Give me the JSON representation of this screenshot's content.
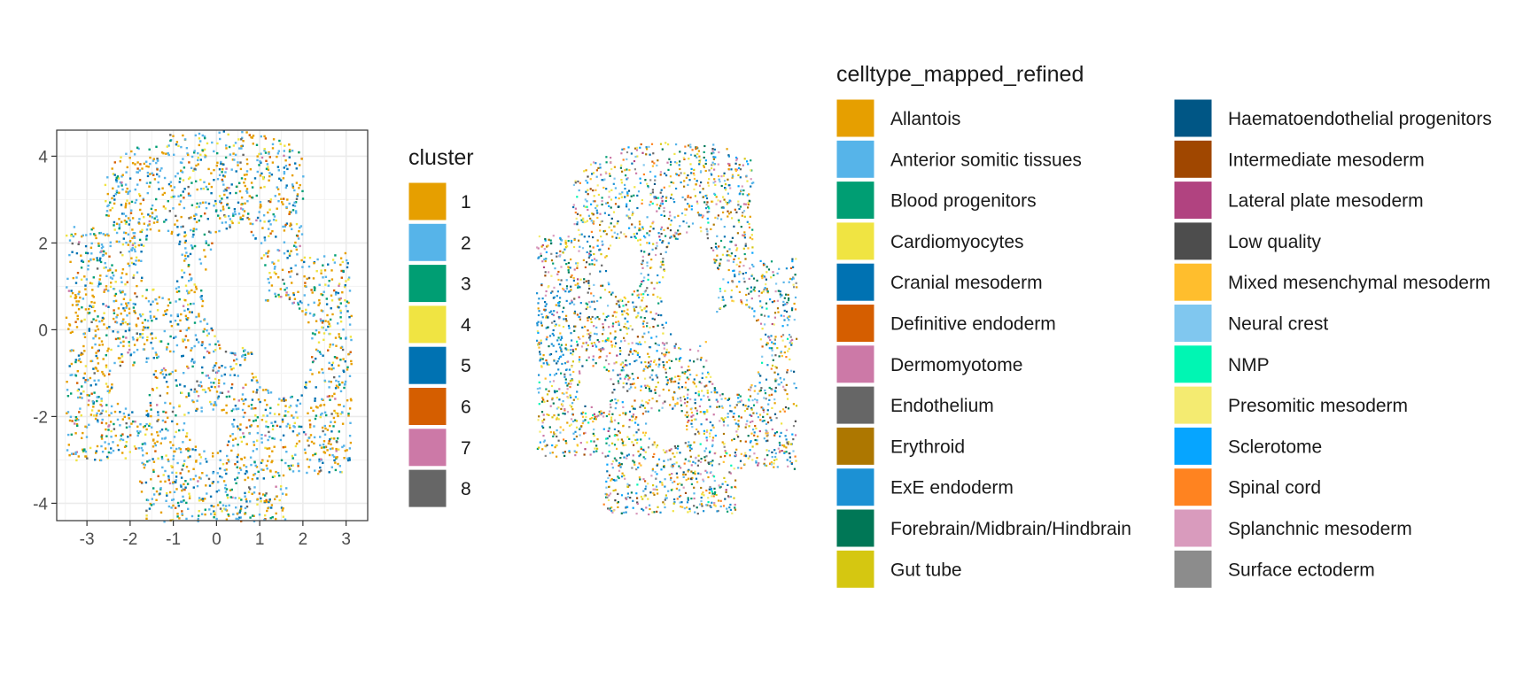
{
  "chart_data": [
    {
      "type": "scatter",
      "title": "",
      "xlabel": "",
      "ylabel": "",
      "xlim": [
        -3.7,
        3.5
      ],
      "ylim": [
        -4.4,
        4.6
      ],
      "x_ticks": [
        -3,
        -2,
        -1,
        0,
        1,
        2,
        3
      ],
      "y_ticks": [
        -4,
        -2,
        0,
        2,
        4
      ],
      "grid": true,
      "legend": {
        "title": "cluster",
        "position": "right",
        "entries": [
          {
            "label": "1",
            "color": "#E69F00"
          },
          {
            "label": "2",
            "color": "#56B4E9"
          },
          {
            "label": "3",
            "color": "#009E73"
          },
          {
            "label": "4",
            "color": "#F0E442"
          },
          {
            "label": "5",
            "color": "#0072B2"
          },
          {
            "label": "6",
            "color": "#D55E00"
          },
          {
            "label": "7",
            "color": "#CC79A7"
          },
          {
            "label": "8",
            "color": "#666666"
          }
        ]
      },
      "cluster_weights": [
        0.3,
        0.3,
        0.1,
        0.08,
        0.12,
        0.04,
        0.03,
        0.03
      ]
    },
    {
      "type": "scatter",
      "title": "",
      "axes": false,
      "legend": {
        "title": "celltype_mapped_refined",
        "position": "right",
        "columns": 2,
        "entries": [
          {
            "label": "Allantois",
            "color": "#E69F00"
          },
          {
            "label": "Anterior somitic tissues",
            "color": "#56B4E9"
          },
          {
            "label": "Blood progenitors",
            "color": "#009E73"
          },
          {
            "label": "Cardiomyocytes",
            "color": "#F0E442"
          },
          {
            "label": "Cranial mesoderm",
            "color": "#0072B2"
          },
          {
            "label": "Definitive endoderm",
            "color": "#D55E00"
          },
          {
            "label": "Dermomyotome",
            "color": "#CC79A7"
          },
          {
            "label": "Endothelium",
            "color": "#666666"
          },
          {
            "label": "Erythroid",
            "color": "#AD7700"
          },
          {
            "label": "ExE endoderm",
            "color": "#1C91D4"
          },
          {
            "label": "Forebrain/Midbrain/Hindbrain",
            "color": "#007756"
          },
          {
            "label": "Gut tube",
            "color": "#D5C711"
          },
          {
            "label": "Haematoendothelial progenitors",
            "color": "#005685"
          },
          {
            "label": "Intermediate mesoderm",
            "color": "#A04700"
          },
          {
            "label": "Lateral plate mesoderm",
            "color": "#B14380"
          },
          {
            "label": "Low quality",
            "color": "#4D4D4D"
          },
          {
            "label": "Mixed mesenchymal mesoderm",
            "color": "#FFBE2D"
          },
          {
            "label": "Neural crest",
            "color": "#80C7EF"
          },
          {
            "label": "NMP",
            "color": "#00F6B3"
          },
          {
            "label": "Presomitic mesoderm",
            "color": "#F4EB71"
          },
          {
            "label": "Sclerotome",
            "color": "#06A5FF"
          },
          {
            "label": "Spinal cord",
            "color": "#FF8320"
          },
          {
            "label": "Splanchnic mesoderm",
            "color": "#D99BBD"
          },
          {
            "label": "Surface ectoderm",
            "color": "#8C8C8C"
          }
        ]
      }
    }
  ]
}
